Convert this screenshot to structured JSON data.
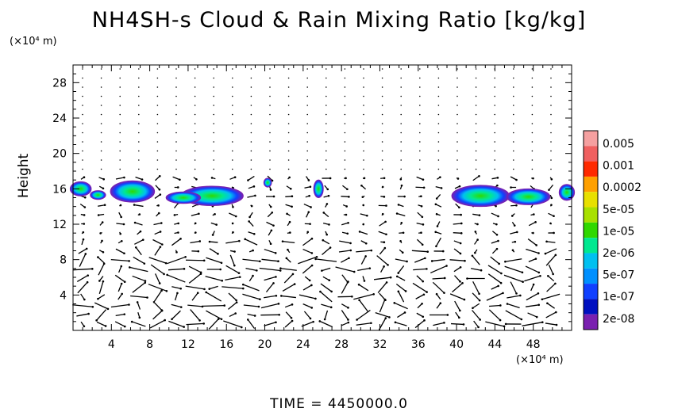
{
  "chart_data": {
    "type": "heatmap",
    "title": "NH4SH-s Cloud & Rain Mixing Ratio [kg/kg]",
    "xlabel": "",
    "ylabel": "Height",
    "x_unit": "(×10⁴ m)",
    "y_unit": "(×10⁴ m)",
    "xlim": [
      0,
      52
    ],
    "ylim": [
      0,
      30
    ],
    "x_ticks": [
      4,
      8,
      12,
      16,
      20,
      24,
      28,
      32,
      36,
      40,
      44,
      48
    ],
    "y_ticks": [
      4,
      8,
      12,
      16,
      20,
      24,
      28
    ],
    "colorbar_labels": [
      "0.005",
      "0.001",
      "0.0002",
      "5e-05",
      "1e-05",
      "2e-06",
      "5e-07",
      "1e-07",
      "2e-08"
    ],
    "colorbar_colors": [
      "#f5a0a0",
      "#f06060",
      "#ff2a00",
      "#ffa000",
      "#e8e000",
      "#a8e000",
      "#30d800",
      "#00e890",
      "#00c0f0",
      "#0090ff",
      "#1040ff",
      "#0010c0",
      "#7a20b0"
    ],
    "cloud_regions": [
      {
        "x": 0.8,
        "y": 16.0,
        "w": 2.2,
        "h": 1.6
      },
      {
        "x": 2.6,
        "y": 15.3,
        "w": 1.6,
        "h": 1.0
      },
      {
        "x": 6.2,
        "y": 15.7,
        "w": 4.6,
        "h": 2.4
      },
      {
        "x": 14.5,
        "y": 15.2,
        "w": 6.5,
        "h": 2.2
      },
      {
        "x": 11.5,
        "y": 15.0,
        "w": 3.6,
        "h": 1.3
      },
      {
        "x": 20.3,
        "y": 16.7,
        "w": 0.8,
        "h": 1.0
      },
      {
        "x": 25.6,
        "y": 16.0,
        "w": 1.0,
        "h": 2.0
      },
      {
        "x": 42.5,
        "y": 15.2,
        "w": 6.0,
        "h": 2.4
      },
      {
        "x": 47.5,
        "y": 15.1,
        "w": 4.5,
        "h": 1.8
      },
      {
        "x": 51.5,
        "y": 15.6,
        "w": 1.6,
        "h": 1.8
      }
    ],
    "time_label": "TIME  =  4450000.0"
  }
}
